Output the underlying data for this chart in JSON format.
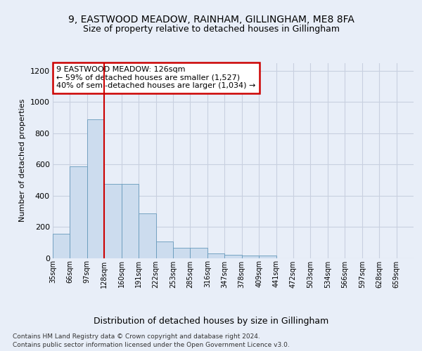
{
  "title1": "9, EASTWOOD MEADOW, RAINHAM, GILLINGHAM, ME8 8FA",
  "title2": "Size of property relative to detached houses in Gillingham",
  "xlabel": "Distribution of detached houses by size in Gillingham",
  "ylabel": "Number of detached properties",
  "bin_labels": [
    "35sqm",
    "66sqm",
    "97sqm",
    "128sqm",
    "160sqm",
    "191sqm",
    "222sqm",
    "253sqm",
    "285sqm",
    "316sqm",
    "347sqm",
    "378sqm",
    "409sqm",
    "441sqm",
    "472sqm",
    "503sqm",
    "534sqm",
    "566sqm",
    "597sqm",
    "628sqm",
    "659sqm"
  ],
  "bar_heights": [
    155,
    590,
    890,
    475,
    475,
    285,
    105,
    65,
    65,
    30,
    20,
    15,
    15,
    0,
    0,
    0,
    0,
    0,
    0,
    0,
    0
  ],
  "bar_color": "#ccdcee",
  "bar_edge_color": "#6699bb",
  "red_line_x": 3,
  "annotation_text": "9 EASTWOOD MEADOW: 126sqm\n← 59% of detached houses are smaller (1,527)\n40% of semi-detached houses are larger (1,034) →",
  "annotation_box_color": "#ffffff",
  "annotation_box_edge": "#cc0000",
  "red_line_color": "#cc0000",
  "ylim": [
    0,
    1250
  ],
  "yticks": [
    0,
    200,
    400,
    600,
    800,
    1000,
    1200
  ],
  "footer1": "Contains HM Land Registry data © Crown copyright and database right 2024.",
  "footer2": "Contains public sector information licensed under the Open Government Licence v3.0.",
  "bg_color": "#e8eef8",
  "grid_color": "#c8d0e0"
}
